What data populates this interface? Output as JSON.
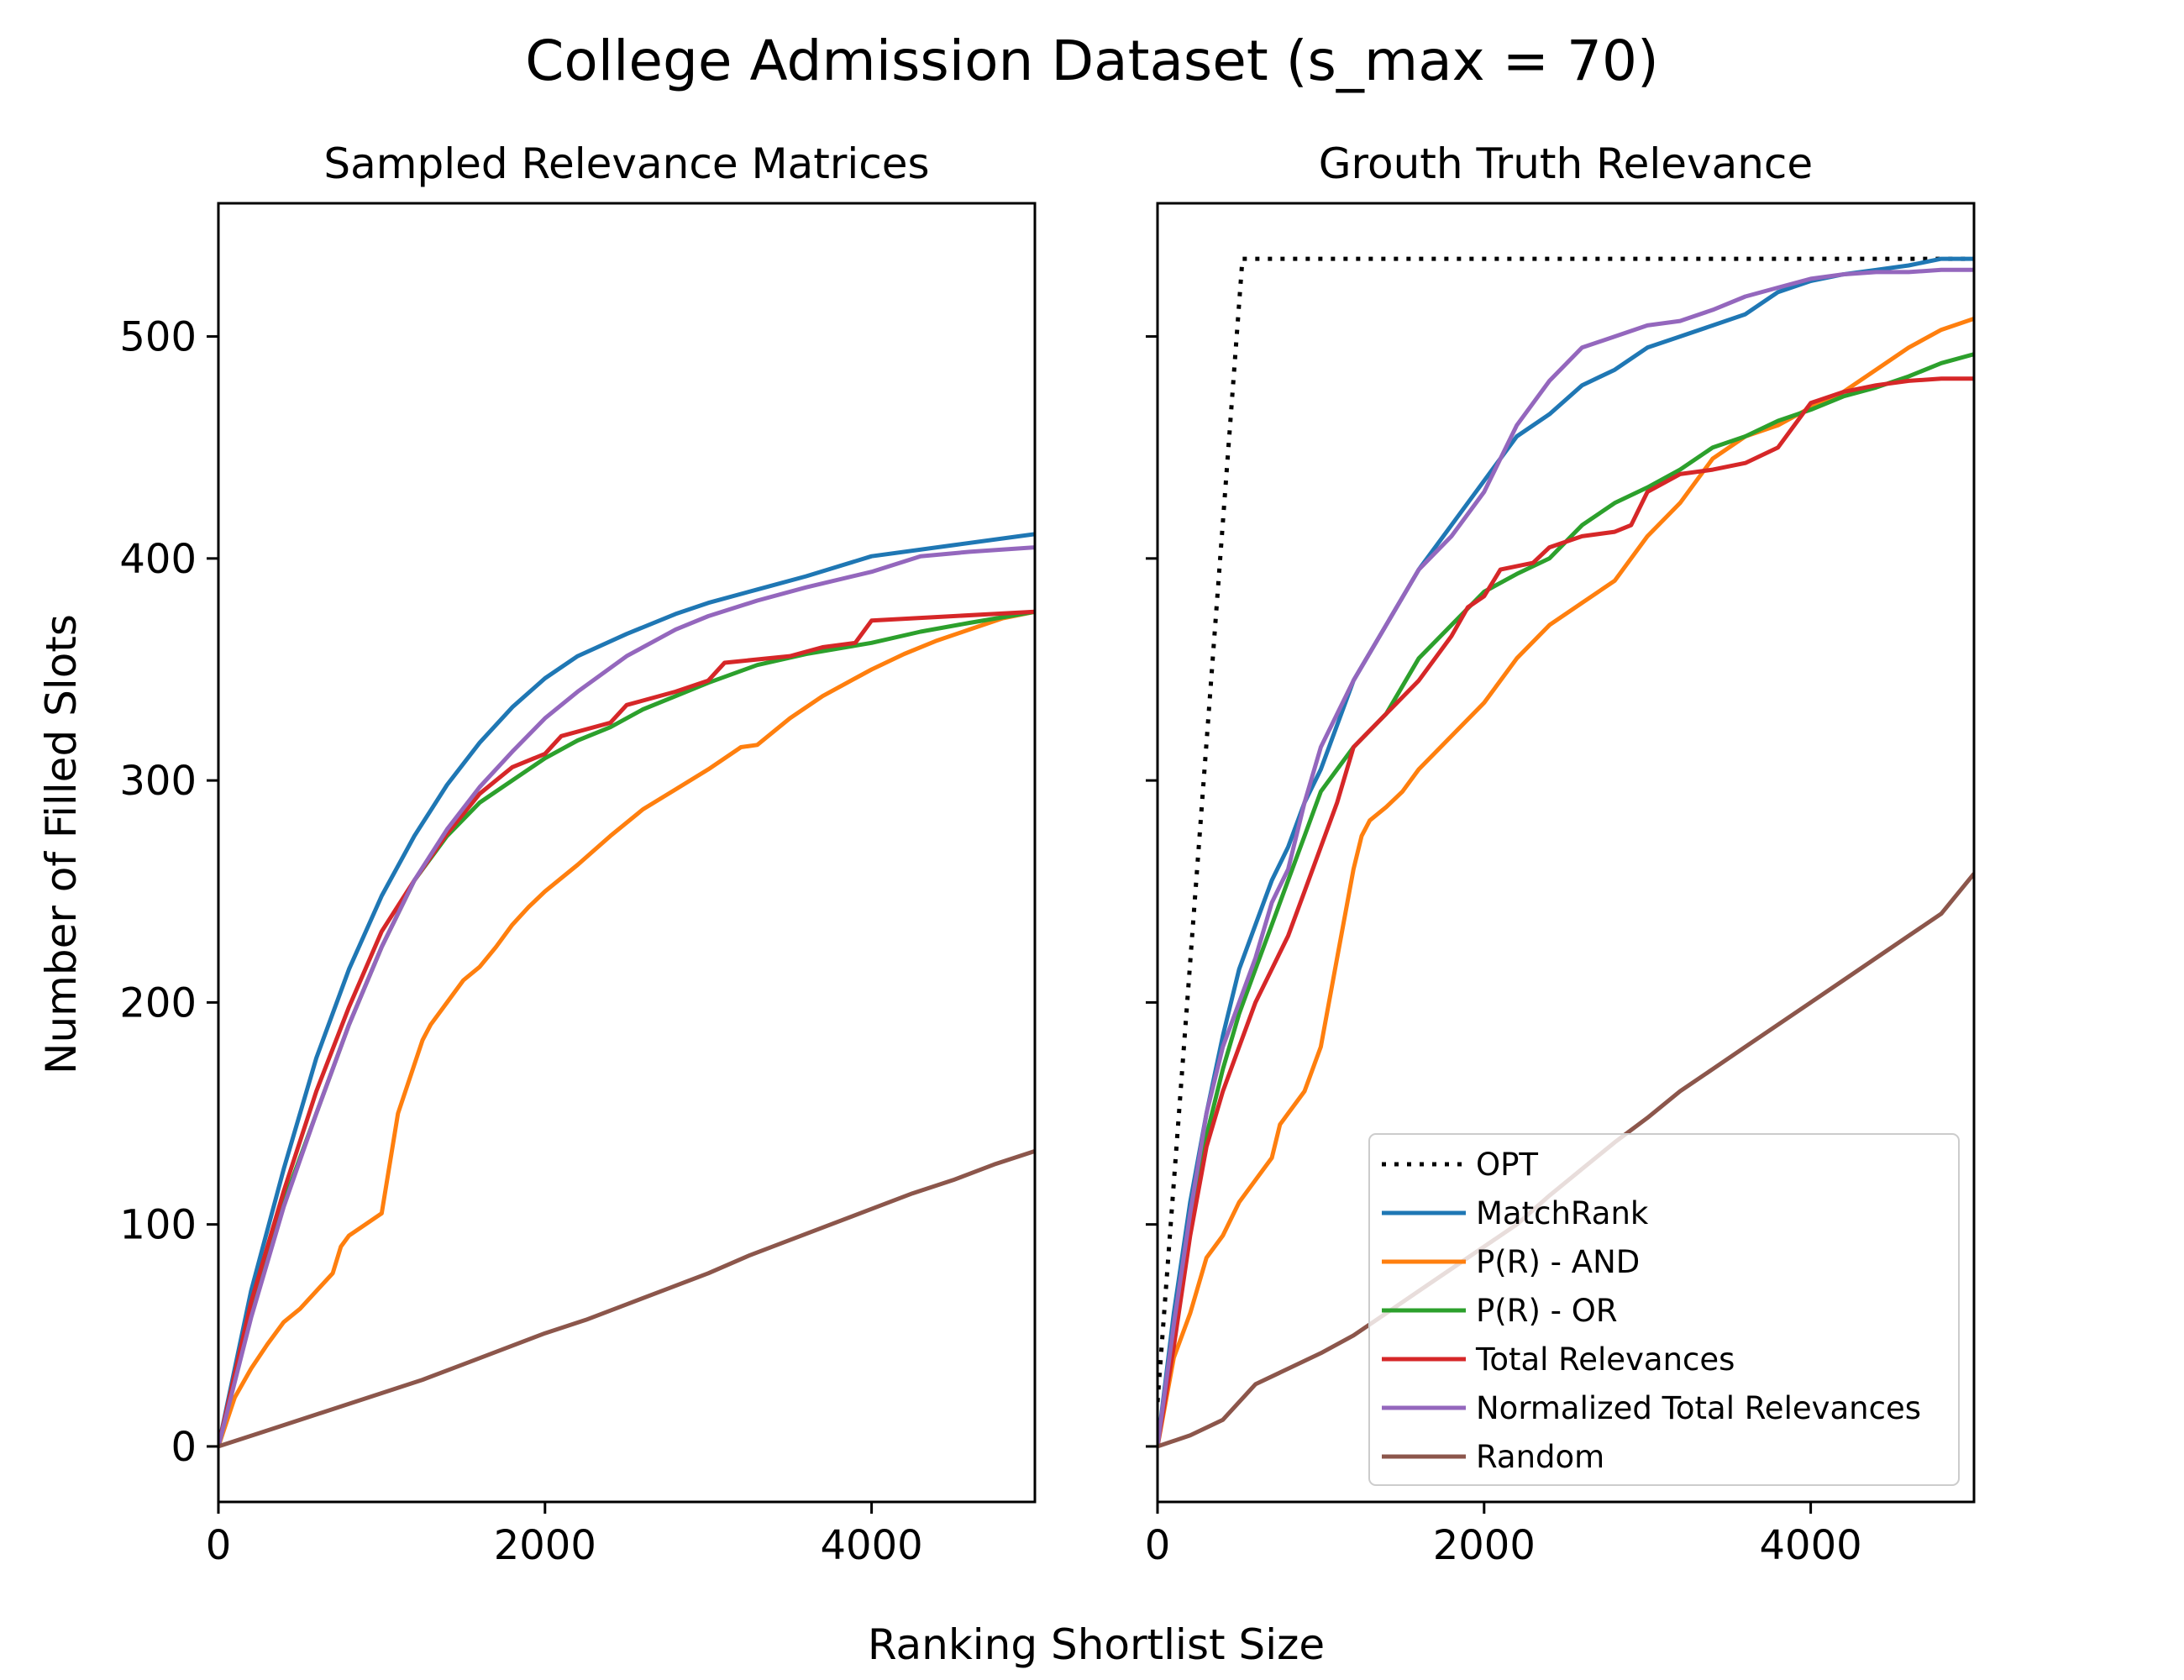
{
  "chart_data": {
    "suptitle": "College Admission Dataset (s_max = 70)",
    "xlabel": "Ranking Shortlist Size",
    "ylabel": "Number of Filled Slots",
    "legend_position": "lower right (right panel)",
    "colors": {
      "OPT": "#000000",
      "MatchRank": "#1f77b4",
      "P(R) - AND": "#ff7f0e",
      "P(R) - OR": "#2ca02c",
      "Total Relevances": "#d62728",
      "Normalized Total Relevances": "#9467bd",
      "Random": "#8c564b"
    },
    "legend": [
      {
        "name": "OPT",
        "dash": true
      },
      {
        "name": "MatchRank",
        "dash": false
      },
      {
        "name": "P(R) - AND",
        "dash": false
      },
      {
        "name": "P(R) - OR",
        "dash": false
      },
      {
        "name": "Total Relevances",
        "dash": false
      },
      {
        "name": "Normalized Total Relevances",
        "dash": false
      },
      {
        "name": "Random",
        "dash": false
      }
    ],
    "panels": [
      {
        "title": "Sampled Relevance Matrices",
        "type": "line",
        "xlim": [
          0,
          5000
        ],
        "ylim": [
          -25,
          560
        ],
        "xticks": [
          0,
          2000,
          4000
        ],
        "yticks": [
          0,
          100,
          200,
          300,
          400,
          500
        ],
        "show_yticklabels": true,
        "series": [
          {
            "name": "MatchRank",
            "x": [
              0,
              200,
              400,
              600,
              800,
              1000,
              1200,
              1400,
              1600,
              1800,
              2000,
              2200,
              2500,
              2800,
              3000,
              3300,
              3600,
              4000,
              4500,
              5000
            ],
            "y": [
              0,
              70,
              125,
              175,
              215,
              248,
              275,
              298,
              317,
              333,
              346,
              356,
              366,
              375,
              380,
              386,
              392,
              401,
              406,
              411
            ]
          },
          {
            "name": "P(R) - AND",
            "x": [
              0,
              100,
              200,
              300,
              400,
              500,
              600,
              700,
              750,
              800,
              900,
              1000,
              1100,
              1250,
              1300,
              1400,
              1500,
              1600,
              1700,
              1800,
              1900,
              2000,
              2200,
              2400,
              2600,
              2800,
              3000,
              3200,
              3300,
              3500,
              3700,
              3900,
              4000,
              4200,
              4400,
              4600,
              4800,
              5000
            ],
            "y": [
              0,
              22,
              35,
              46,
              56,
              62,
              70,
              78,
              90,
              95,
              100,
              105,
              150,
              183,
              190,
              200,
              210,
              216,
              225,
              235,
              243,
              250,
              262,
              275,
              287,
              296,
              305,
              315,
              316,
              328,
              338,
              346,
              350,
              357,
              363,
              368,
              373,
              376
            ]
          },
          {
            "name": "P(R) - OR",
            "x": [
              0,
              200,
              400,
              600,
              800,
              1000,
              1200,
              1400,
              1600,
              1800,
              2000,
              2200,
              2400,
              2600,
              2800,
              3000,
              3300,
              3600,
              4000,
              4300,
              4600,
              5000
            ],
            "y": [
              0,
              60,
              110,
              150,
              190,
              225,
              255,
              275,
              290,
              300,
              310,
              318,
              324,
              332,
              338,
              344,
              352,
              357,
              362,
              367,
              371,
              376
            ]
          },
          {
            "name": "Total Relevances",
            "x": [
              0,
              200,
              400,
              600,
              800,
              1000,
              1200,
              1400,
              1600,
              1700,
              1800,
              2000,
              2100,
              2400,
              2500,
              2800,
              3000,
              3100,
              3500,
              3700,
              3900,
              4000,
              4500,
              5000
            ],
            "y": [
              0,
              65,
              115,
              160,
              198,
              232,
              255,
              276,
              294,
              300,
              306,
              312,
              320,
              326,
              334,
              340,
              345,
              353,
              356,
              360,
              362,
              372,
              374,
              376
            ]
          },
          {
            "name": "Normalized Total Relevances",
            "x": [
              0,
              200,
              400,
              600,
              800,
              1000,
              1200,
              1400,
              1600,
              1800,
              2000,
              2200,
              2500,
              2800,
              3000,
              3300,
              3600,
              4000,
              4300,
              4600,
              5000
            ],
            "y": [
              0,
              58,
              108,
              150,
              190,
              225,
              255,
              278,
              297,
              313,
              328,
              340,
              356,
              368,
              374,
              381,
              387,
              394,
              401,
              403,
              405
            ]
          },
          {
            "name": "Random",
            "x": [
              0,
              250,
              500,
              750,
              1000,
              1250,
              1500,
              1750,
              2000,
              2250,
              2500,
              2750,
              3000,
              3250,
              3500,
              3750,
              4000,
              4250,
              4500,
              4750,
              5000
            ],
            "y": [
              0,
              6,
              12,
              18,
              24,
              30,
              37,
              44,
              51,
              57,
              64,
              71,
              78,
              86,
              93,
              100,
              107,
              114,
              120,
              127,
              133
            ]
          }
        ]
      },
      {
        "title": "Grouth Truth Relevance",
        "type": "line",
        "xlim": [
          0,
          5000
        ],
        "ylim": [
          -25,
          560
        ],
        "xticks": [
          0,
          2000,
          4000
        ],
        "yticks": [
          0,
          100,
          200,
          300,
          400,
          500
        ],
        "show_yticklabels": false,
        "series": [
          {
            "name": "OPT",
            "x": [
              0,
              520,
              5000
            ],
            "y": [
              20,
              535,
              535
            ]
          },
          {
            "name": "MatchRank",
            "x": [
              0,
              100,
              200,
              300,
              400,
              500,
              600,
              700,
              800,
              900,
              1000,
              1200,
              1400,
              1600,
              1800,
              2000,
              2200,
              2400,
              2600,
              2800,
              3000,
              3200,
              3400,
              3600,
              3800,
              4000,
              4200,
              4400,
              4600,
              4800,
              5000
            ],
            "y": [
              0,
              60,
              110,
              150,
              185,
              215,
              235,
              255,
              270,
              290,
              305,
              345,
              370,
              395,
              415,
              435,
              455,
              465,
              478,
              485,
              495,
              500,
              505,
              510,
              520,
              525,
              528,
              530,
              532,
              535,
              535
            ]
          },
          {
            "name": "P(R) - AND",
            "x": [
              0,
              100,
              200,
              300,
              400,
              500,
              600,
              700,
              750,
              800,
              900,
              1000,
              1100,
              1200,
              1250,
              1300,
              1400,
              1500,
              1600,
              1800,
              2000,
              2200,
              2400,
              2600,
              2800,
              3000,
              3200,
              3400,
              3600,
              3800,
              4000,
              4200,
              4400,
              4600,
              4800,
              5000
            ],
            "y": [
              0,
              40,
              60,
              85,
              95,
              110,
              120,
              130,
              145,
              150,
              160,
              180,
              220,
              260,
              275,
              282,
              288,
              295,
              305,
              320,
              335,
              355,
              370,
              380,
              390,
              410,
              425,
              445,
              455,
              460,
              468,
              475,
              485,
              495,
              503,
              508
            ]
          },
          {
            "name": "P(R) - OR",
            "x": [
              0,
              100,
              200,
              300,
              400,
              500,
              600,
              700,
              800,
              900,
              1000,
              1100,
              1200,
              1400,
              1600,
              1800,
              2000,
              2200,
              2400,
              2600,
              2800,
              3000,
              3200,
              3400,
              3600,
              3800,
              4000,
              4200,
              4400,
              4600,
              4800,
              5000
            ],
            "y": [
              0,
              50,
              100,
              140,
              170,
              195,
              215,
              235,
              255,
              275,
              295,
              305,
              315,
              330,
              355,
              370,
              385,
              393,
              400,
              415,
              425,
              432,
              440,
              450,
              455,
              462,
              467,
              473,
              477,
              482,
              488,
              492
            ]
          },
          {
            "name": "Total Relevances",
            "x": [
              0,
              100,
              200,
              300,
              400,
              500,
              600,
              700,
              800,
              900,
              1000,
              1100,
              1200,
              1400,
              1600,
              1800,
              1900,
              2000,
              2100,
              2300,
              2400,
              2600,
              2800,
              2900,
              3000,
              3200,
              3400,
              3600,
              3800,
              4000,
              4200,
              4400,
              4600,
              4800,
              5000
            ],
            "y": [
              0,
              45,
              95,
              135,
              160,
              180,
              200,
              215,
              230,
              250,
              270,
              290,
              315,
              330,
              345,
              365,
              378,
              383,
              395,
              398,
              405,
              410,
              412,
              415,
              430,
              438,
              440,
              443,
              450,
              470,
              475,
              478,
              480,
              481,
              481
            ]
          },
          {
            "name": "Normalized Total Relevances",
            "x": [
              0,
              100,
              200,
              300,
              400,
              500,
              600,
              700,
              800,
              900,
              1000,
              1200,
              1400,
              1600,
              1800,
              2000,
              2200,
              2400,
              2600,
              2800,
              3000,
              3200,
              3400,
              3600,
              3800,
              4000,
              4200,
              4400,
              4600,
              4800,
              5000
            ],
            "y": [
              0,
              55,
              105,
              150,
              180,
              200,
              220,
              245,
              260,
              290,
              315,
              345,
              370,
              395,
              410,
              430,
              460,
              480,
              495,
              500,
              505,
              507,
              512,
              518,
              522,
              526,
              528,
              529,
              529,
              530,
              530
            ]
          },
          {
            "name": "Random",
            "x": [
              0,
              200,
              400,
              600,
              800,
              1000,
              1200,
              1400,
              1600,
              1800,
              2000,
              2200,
              2400,
              2600,
              2800,
              3000,
              3200,
              3400,
              3600,
              3800,
              4000,
              4200,
              4400,
              4600,
              4800,
              5000
            ],
            "y": [
              0,
              5,
              12,
              28,
              35,
              42,
              50,
              60,
              70,
              80,
              90,
              100,
              113,
              125,
              137,
              148,
              160,
              170,
              180,
              190,
              200,
              210,
              220,
              230,
              240,
              258
            ]
          }
        ]
      }
    ]
  }
}
